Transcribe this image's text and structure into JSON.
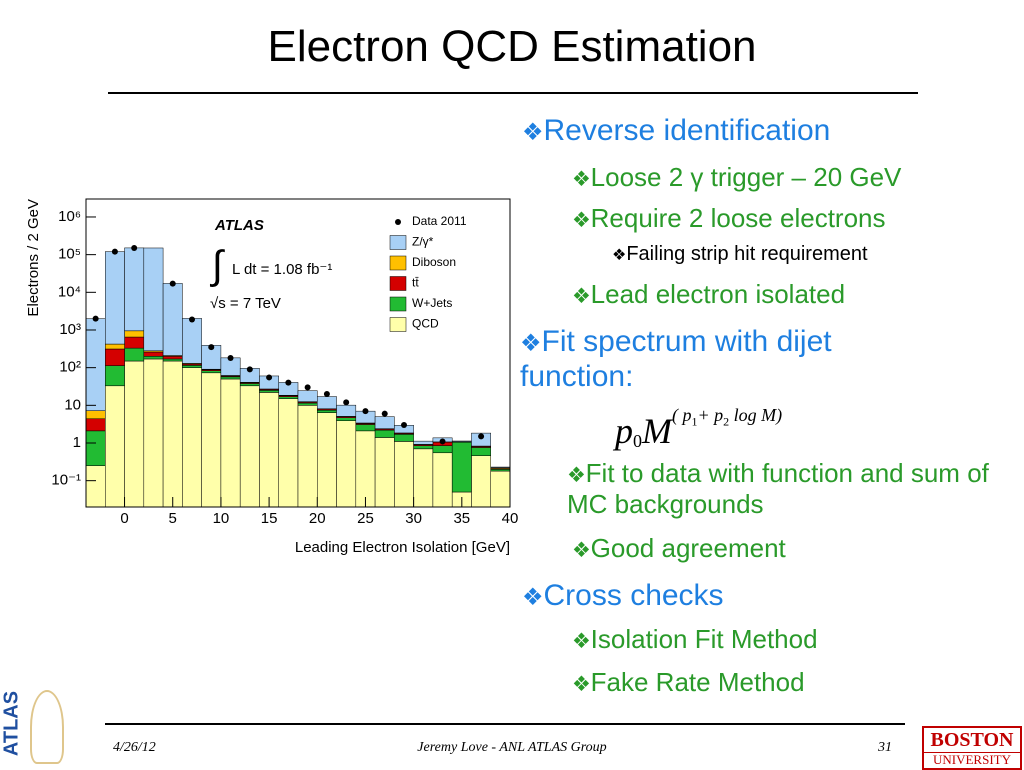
{
  "header": {
    "title": "Electron QCD Estimation"
  },
  "bullets": [
    {
      "text": "Reverse identification",
      "level": 1
    },
    {
      "text": "Loose 2 γ trigger – 20 GeV",
      "level": 2
    },
    {
      "text": "Require 2 loose electrons",
      "level": 2
    },
    {
      "text": "Failing strip hit requirement",
      "level": 3
    },
    {
      "text": "Lead electron isolated",
      "level": 2
    },
    {
      "text": "Fit spectrum with dijet function:",
      "level": 1
    },
    {
      "text": "Fit to data with function and sum of MC backgrounds",
      "level": 2
    },
    {
      "text": "Good agreement",
      "level": 2
    },
    {
      "text": "Cross checks",
      "level": 1
    },
    {
      "text": "Isolation Fit Method",
      "level": 2
    },
    {
      "text": "Fake Rate Method",
      "level": 2
    }
  ],
  "formula": [
    "p",
    "0",
    "M",
    "( p",
    "1",
    "+ p",
    "2",
    " log M)"
  ],
  "footer": {
    "date": "4/26/12",
    "author": "Jeremy Love - ANL ATLAS Group",
    "page": "31",
    "left_logo": "ATLAS",
    "right_logo": [
      "BOSTON",
      "UNIVERSITY"
    ]
  },
  "chart_data": {
    "type": "stacked-histogram",
    "xlabel": "Leading Electron Isolation [GeV]",
    "ylabel": "Electrons / 2 GeV",
    "annotations": [
      "ATLAS",
      "∫",
      "L dt = 1.08 fb⁻¹",
      "√s = 7 TeV"
    ],
    "bins": [
      -4,
      -2,
      0,
      2,
      4,
      6,
      8,
      10,
      12,
      14,
      16,
      18,
      20,
      22,
      24,
      26,
      28,
      30,
      32,
      34,
      36,
      38,
      40
    ],
    "series": [
      {
        "name": "QCD",
        "color": "#ffffaa",
        "values": [
          0.25,
          33,
          150,
          170,
          150,
          100,
          73,
          50,
          33,
          22,
          15,
          10,
          6.4,
          3.9,
          2.1,
          1.4,
          1.1,
          0.7,
          0.55,
          0.05,
          0.46,
          0.18
        ]
      },
      {
        "name": "W+Jets",
        "color": "#22bb33",
        "values": [
          1.85,
          80,
          180,
          30,
          20,
          15,
          10,
          7,
          5,
          3,
          2,
          1.5,
          1,
          0.8,
          1.0,
          0.8,
          0.6,
          0.15,
          0.3,
          1.0,
          0.3,
          0.02
        ]
      },
      {
        "name": "tt̄",
        "color": "#d40000",
        "values": [
          2.3,
          200,
          320,
          60,
          30,
          10,
          5,
          3,
          2,
          1.5,
          1,
          0.7,
          0.5,
          0.3,
          0.2,
          0.15,
          0.1,
          0.05,
          0.2,
          0.02,
          0.05,
          0.01
        ]
      },
      {
        "name": "Diboson",
        "color": "#ffc000",
        "values": [
          2.8,
          110,
          300,
          20,
          10,
          5,
          3,
          2,
          1,
          0.7,
          0.5,
          0.3,
          0.2,
          0.1,
          0.1,
          0.05,
          0.05,
          0.02,
          0.02,
          0.01,
          0.02,
          0.01
        ]
      },
      {
        "name": "Z/γ*",
        "color": "#a8d0f5",
        "values": [
          1990,
          120000,
          150000,
          150000,
          17000,
          1900,
          300,
          120,
          55,
          33,
          22,
          12,
          9,
          5,
          3.6,
          2.6,
          1.1,
          0.2,
          0.3,
          0.05,
          1.0,
          0.01
        ]
      }
    ],
    "data_series": {
      "name": "Data 2011",
      "color": "#000000",
      "values": [
        2000,
        120000,
        150000,
        null,
        17000,
        1900,
        350,
        180,
        90,
        55,
        40,
        30,
        20,
        12,
        7,
        6,
        3,
        null,
        1.1,
        null,
        1.5,
        null
      ]
    },
    "xlim": [
      -4,
      40
    ],
    "xticks": [
      0,
      5,
      10,
      15,
      20,
      25,
      30,
      35,
      40
    ],
    "ylim": [
      0.02,
      3000000
    ],
    "log_y": true,
    "yticks": [
      {
        "value": 0.1,
        "label": "10⁻¹"
      },
      1,
      10,
      {
        "value": 100,
        "label": "10²"
      },
      {
        "value": 1000,
        "label": "10³"
      },
      {
        "value": 10000,
        "label": "10⁴"
      },
      {
        "value": 100000,
        "label": "10⁵"
      },
      {
        "value": 1000000,
        "label": "10⁶"
      }
    ],
    "legend": "top right"
  }
}
